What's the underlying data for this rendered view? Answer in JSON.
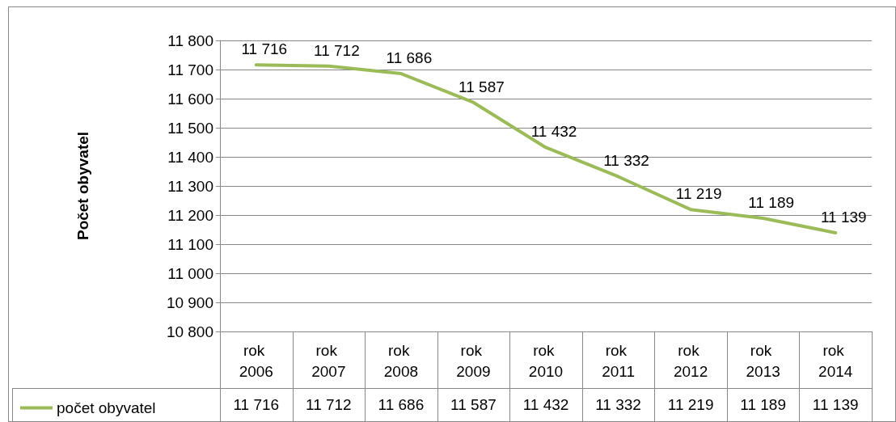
{
  "chart_data": {
    "type": "line",
    "ylabel": "Počet obyvatel",
    "categories": [
      "rok 2006",
      "rok 2007",
      "rok 2008",
      "rok 2009",
      "rok 2010",
      "rok 2011",
      "rok 2012",
      "rok 2013",
      "rok 2014"
    ],
    "series": [
      {
        "name": "počet obyvatel",
        "color": "#9bbb59",
        "values": [
          11716,
          11712,
          11686,
          11587,
          11432,
          11332,
          11219,
          11189,
          11139
        ],
        "value_labels": [
          "11 716",
          "11 712",
          "11 686",
          "11 587",
          "11 432",
          "11 332",
          "11 219",
          "11 189",
          "11 139"
        ]
      }
    ],
    "ylim": [
      10800,
      11800
    ],
    "yticks": [
      {
        "value": 10800,
        "label": "10 800"
      },
      {
        "value": 10900,
        "label": "10 900"
      },
      {
        "value": 11000,
        "label": "11 000"
      },
      {
        "value": 11100,
        "label": "11 100"
      },
      {
        "value": 11200,
        "label": "11 200"
      },
      {
        "value": 11300,
        "label": "11 300"
      },
      {
        "value": 11400,
        "label": "11 400"
      },
      {
        "value": 11500,
        "label": "11 500"
      },
      {
        "value": 11600,
        "label": "11 600"
      },
      {
        "value": 11700,
        "label": "11 700"
      },
      {
        "value": 11800,
        "label": "11 800"
      }
    ],
    "grid": "y",
    "legend": "bottom left",
    "marker": "none",
    "line_style": "solid"
  }
}
